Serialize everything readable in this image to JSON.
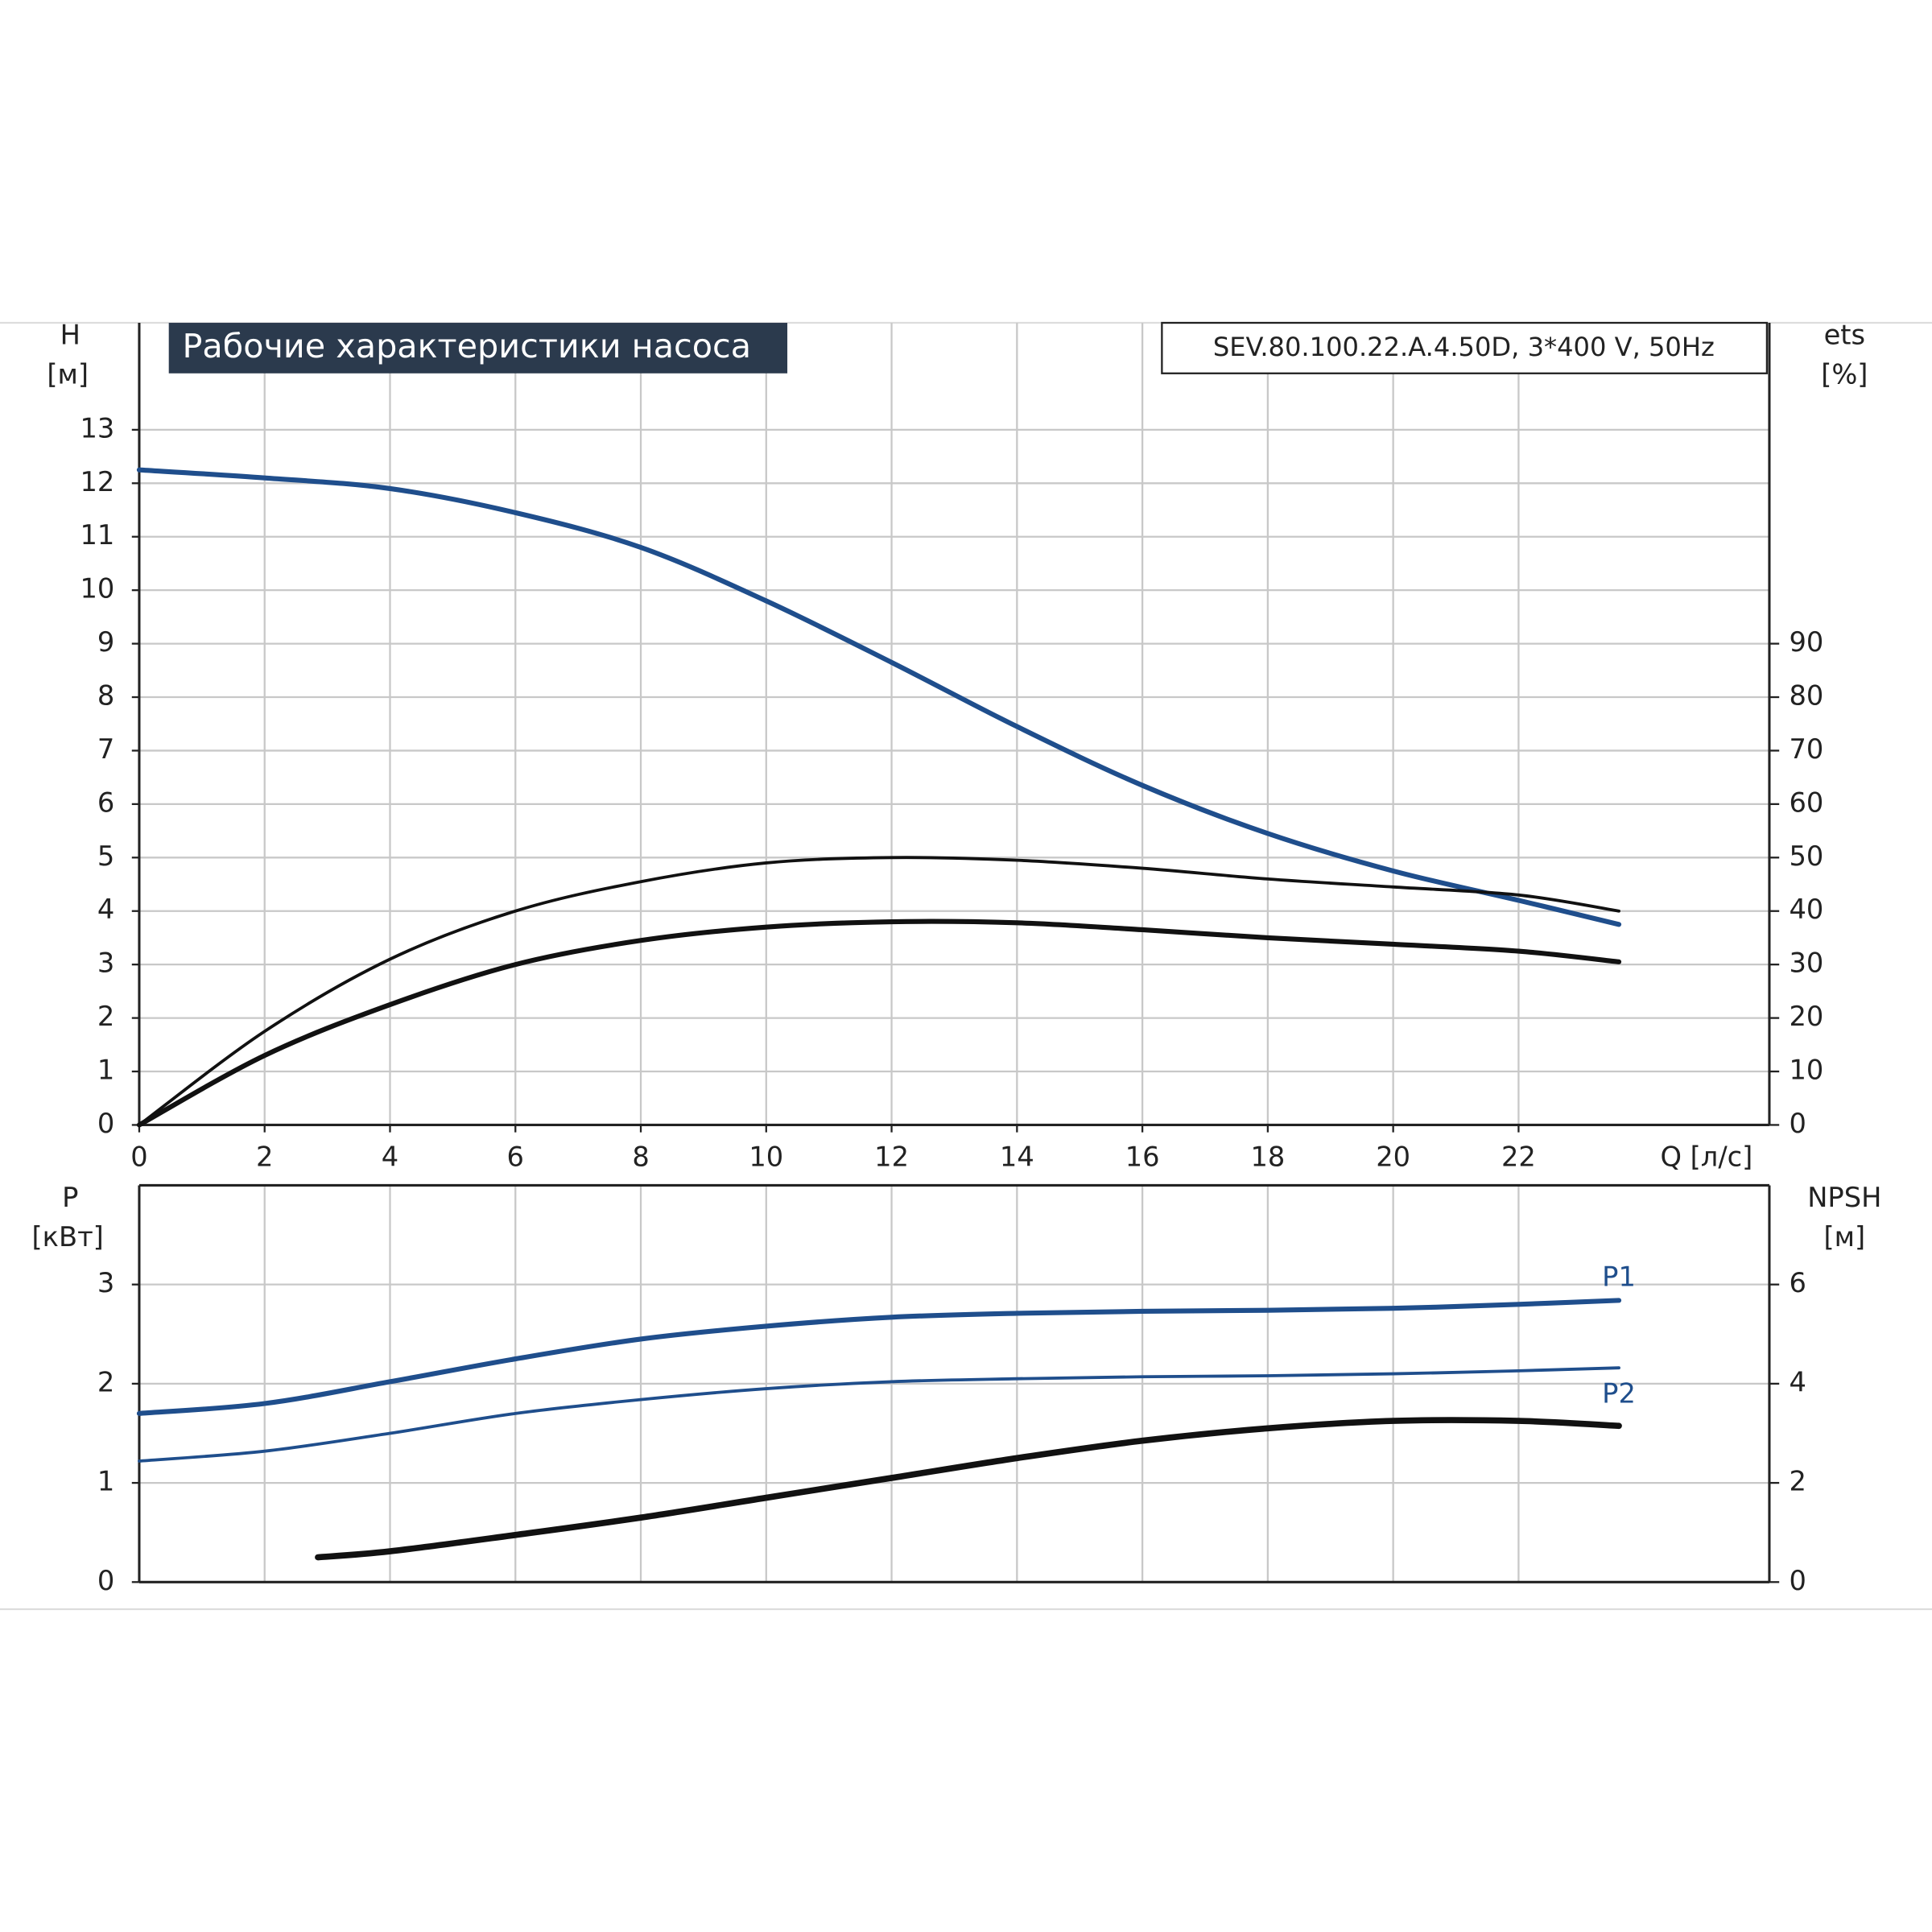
{
  "chart_data": [
    {
      "type": "line",
      "title": "Рабочие характеристики насоса",
      "subtitle": "SEV.80.100.22.A.4.50D, 3*400 V, 50Hz",
      "ylabel": "H",
      "yunit": "[м]",
      "y2label": "ets",
      "y2unit": "[%]",
      "xlabel": "Q [л/с]",
      "xlim": [
        0,
        26
      ],
      "xticks": [
        0,
        2,
        4,
        6,
        8,
        10,
        12,
        14,
        16,
        18,
        20,
        22
      ],
      "show_xtick_labels": true,
      "ylim": [
        0,
        15
      ],
      "yticks": [
        0,
        1,
        2,
        3,
        4,
        5,
        6,
        7,
        8,
        9,
        10,
        11,
        12,
        13
      ],
      "y2lim": [
        0,
        150
      ],
      "y2ticks": [
        0,
        10,
        20,
        30,
        40,
        50,
        60,
        70,
        80,
        90
      ],
      "grid": true,
      "series": [
        {
          "color": "#1f4e8c",
          "line_width": 4,
          "x": [
            0,
            2,
            4,
            6,
            8,
            10,
            12,
            14,
            16,
            18,
            20,
            22,
            23.6
          ],
          "values": [
            12.25,
            12.1,
            11.9,
            11.45,
            10.8,
            9.8,
            8.65,
            7.45,
            6.35,
            5.45,
            4.75,
            4.2,
            3.75
          ]
        },
        {
          "color": "#111111",
          "line_width": 2.5,
          "axis": "y2",
          "x": [
            0,
            2,
            4,
            6,
            8,
            10,
            12,
            14,
            16,
            18,
            20,
            22,
            23.6
          ],
          "values": [
            0,
            17.5,
            31,
            40,
            45.5,
            49,
            50,
            49.5,
            48,
            46,
            44.5,
            43,
            40
          ]
        },
        {
          "color": "#111111",
          "line_width": 4,
          "axis": "y2",
          "x": [
            0,
            2,
            4,
            6,
            8,
            10,
            12,
            14,
            16,
            18,
            20,
            22,
            23.6
          ],
          "values": [
            0,
            13,
            22.5,
            30,
            34.5,
            37,
            38,
            37.8,
            36.5,
            35,
            33.8,
            32.5,
            30.5
          ]
        }
      ]
    },
    {
      "type": "line",
      "ylabel": "P",
      "yunit": "[кВт]",
      "y2label": "NPSH",
      "y2unit": "[м]",
      "xlim": [
        0,
        26
      ],
      "xticks": [
        0,
        2,
        4,
        6,
        8,
        10,
        12,
        14,
        16,
        18,
        20,
        22
      ],
      "show_xtick_labels": false,
      "ylim": [
        0,
        4
      ],
      "yticks": [
        0,
        1,
        2,
        3
      ],
      "y2lim": [
        0,
        8
      ],
      "y2ticks": [
        0,
        2,
        4,
        6
      ],
      "grid": true,
      "series": [
        {
          "name": "P1",
          "color": "#1f4e8c",
          "line_width": 4,
          "x": [
            0,
            2,
            4,
            6,
            8,
            10,
            12,
            14,
            16,
            18,
            20,
            22,
            23.6
          ],
          "values": [
            1.7,
            1.8,
            2.02,
            2.25,
            2.45,
            2.58,
            2.67,
            2.71,
            2.73,
            2.74,
            2.76,
            2.8,
            2.84
          ]
        },
        {
          "name": "P2",
          "color": "#1f4e8c",
          "line_width": 2.5,
          "x": [
            0,
            2,
            4,
            6,
            8,
            10,
            12,
            14,
            16,
            18,
            20,
            22,
            23.6
          ],
          "values": [
            1.22,
            1.32,
            1.5,
            1.7,
            1.84,
            1.95,
            2.02,
            2.05,
            2.07,
            2.08,
            2.1,
            2.13,
            2.16
          ]
        },
        {
          "color": "#111111",
          "line_width": 5,
          "axis": "y2",
          "x": [
            2.85,
            4,
            6,
            8,
            10,
            12,
            14,
            16,
            18,
            20,
            22,
            23.6
          ],
          "values": [
            0.5,
            0.62,
            0.95,
            1.3,
            1.7,
            2.1,
            2.5,
            2.85,
            3.1,
            3.25,
            3.25,
            3.15
          ]
        }
      ]
    }
  ]
}
